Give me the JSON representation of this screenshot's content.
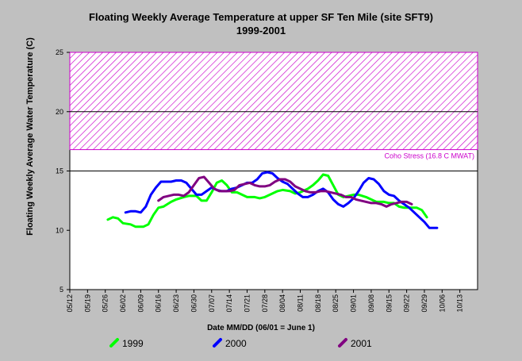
{
  "chart_data": {
    "type": "line",
    "title": "Floating Weekly Average Temperature at upper SF Ten Mile (site SFT9)",
    "subtitle": "1999-2001",
    "xlabel": "Date MM/DD (06/01 = June 1)",
    "ylabel": "Floating Weekly Average Water Temperature (C)",
    "ylim": [
      5,
      25
    ],
    "yticks": [
      "5",
      "10",
      "15",
      "20",
      "25"
    ],
    "grid": "horizontal at 15 and 20",
    "xticks": [
      "05/12",
      "05/19",
      "05/26",
      "06/02",
      "06/09",
      "06/16",
      "06/23",
      "06/30",
      "07/07",
      "07/14",
      "07/21",
      "07/28",
      "08/04",
      "08/11",
      "08/18",
      "08/25",
      "09/01",
      "09/08",
      "09/15",
      "09/22",
      "09/29",
      "10/06",
      "10/13"
    ],
    "band": {
      "from": 16.8,
      "to": 25,
      "label": "Coho Stress (16.8 C MWAT)",
      "color": "#cc00cc"
    },
    "legend_placement": "bottom",
    "series": [
      {
        "name": "1999",
        "color": "#00ff00",
        "points": [
          [
            15,
            10.9
          ],
          [
            17,
            11.1
          ],
          [
            19,
            11.0
          ],
          [
            21,
            10.6
          ],
          [
            24,
            10.5
          ],
          [
            26,
            10.3
          ],
          [
            29,
            10.3
          ],
          [
            31,
            10.5
          ],
          [
            33,
            11.3
          ],
          [
            35,
            11.9
          ],
          [
            37,
            12.0
          ],
          [
            40,
            12.4
          ],
          [
            42,
            12.6
          ],
          [
            45,
            12.8
          ],
          [
            47,
            12.9
          ],
          [
            50,
            12.9
          ],
          [
            52,
            12.5
          ],
          [
            54,
            12.5
          ],
          [
            56,
            13.2
          ],
          [
            58,
            14.0
          ],
          [
            60,
            14.2
          ],
          [
            62,
            13.8
          ],
          [
            64,
            13.2
          ],
          [
            66,
            13.2
          ],
          [
            68,
            13.0
          ],
          [
            70,
            12.8
          ],
          [
            73,
            12.8
          ],
          [
            75,
            12.7
          ],
          [
            77,
            12.8
          ],
          [
            80,
            13.1
          ],
          [
            82,
            13.3
          ],
          [
            84,
            13.4
          ],
          [
            87,
            13.3
          ],
          [
            89,
            13.1
          ],
          [
            91,
            13.2
          ],
          [
            94,
            13.5
          ],
          [
            96,
            13.8
          ],
          [
            98,
            14.2
          ],
          [
            100,
            14.7
          ],
          [
            102,
            14.6
          ],
          [
            104,
            13.8
          ],
          [
            106,
            13.0
          ],
          [
            108,
            12.8
          ],
          [
            110,
            12.9
          ],
          [
            112,
            13.0
          ],
          [
            114,
            13.0
          ],
          [
            117,
            12.8
          ],
          [
            119,
            12.6
          ],
          [
            121,
            12.4
          ],
          [
            124,
            12.4
          ],
          [
            126,
            12.3
          ],
          [
            128,
            12.3
          ],
          [
            130,
            12.0
          ],
          [
            132,
            11.9
          ],
          [
            135,
            11.9
          ],
          [
            137,
            11.9
          ],
          [
            139,
            11.7
          ],
          [
            141,
            11.1
          ]
        ]
      },
      {
        "name": "2000",
        "color": "#0000ff",
        "points": [
          [
            22,
            11.5
          ],
          [
            24,
            11.6
          ],
          [
            26,
            11.6
          ],
          [
            28,
            11.5
          ],
          [
            30,
            12.0
          ],
          [
            32,
            13.0
          ],
          [
            34,
            13.6
          ],
          [
            36,
            14.1
          ],
          [
            38,
            14.1
          ],
          [
            40,
            14.1
          ],
          [
            42,
            14.2
          ],
          [
            44,
            14.2
          ],
          [
            46,
            14.0
          ],
          [
            48,
            13.5
          ],
          [
            50,
            13.0
          ],
          [
            52,
            13.0
          ],
          [
            54,
            13.3
          ],
          [
            56,
            13.6
          ],
          [
            58,
            13.4
          ],
          [
            60,
            13.3
          ],
          [
            62,
            13.3
          ],
          [
            64,
            13.5
          ],
          [
            66,
            13.6
          ],
          [
            68,
            13.8
          ],
          [
            70,
            14.0
          ],
          [
            72,
            14.0
          ],
          [
            74,
            14.3
          ],
          [
            76,
            14.8
          ],
          [
            78,
            14.9
          ],
          [
            80,
            14.8
          ],
          [
            82,
            14.4
          ],
          [
            84,
            14.1
          ],
          [
            86,
            13.9
          ],
          [
            88,
            13.5
          ],
          [
            90,
            13.1
          ],
          [
            92,
            12.8
          ],
          [
            94,
            12.8
          ],
          [
            96,
            13.0
          ],
          [
            98,
            13.3
          ],
          [
            100,
            13.5
          ],
          [
            102,
            13.2
          ],
          [
            104,
            12.6
          ],
          [
            106,
            12.2
          ],
          [
            108,
            12.0
          ],
          [
            110,
            12.3
          ],
          [
            112,
            12.7
          ],
          [
            114,
            13.3
          ],
          [
            116,
            14.0
          ],
          [
            118,
            14.4
          ],
          [
            120,
            14.3
          ],
          [
            122,
            13.9
          ],
          [
            124,
            13.3
          ],
          [
            126,
            13.0
          ],
          [
            128,
            12.9
          ],
          [
            130,
            12.5
          ],
          [
            132,
            12.2
          ],
          [
            134,
            11.9
          ],
          [
            136,
            11.5
          ],
          [
            138,
            11.1
          ],
          [
            140,
            10.7
          ],
          [
            142,
            10.2
          ],
          [
            145,
            10.2
          ]
        ]
      },
      {
        "name": "2001",
        "color": "#800080",
        "points": [
          [
            35,
            12.5
          ],
          [
            37,
            12.8
          ],
          [
            39,
            12.9
          ],
          [
            41,
            13.0
          ],
          [
            43,
            13.0
          ],
          [
            45,
            12.9
          ],
          [
            47,
            13.2
          ],
          [
            49,
            13.8
          ],
          [
            51,
            14.4
          ],
          [
            53,
            14.5
          ],
          [
            55,
            14.0
          ],
          [
            57,
            13.5
          ],
          [
            59,
            13.3
          ],
          [
            61,
            13.3
          ],
          [
            63,
            13.3
          ],
          [
            65,
            13.4
          ],
          [
            67,
            13.8
          ],
          [
            69,
            13.9
          ],
          [
            71,
            14.0
          ],
          [
            73,
            13.8
          ],
          [
            75,
            13.7
          ],
          [
            77,
            13.7
          ],
          [
            79,
            13.8
          ],
          [
            81,
            14.1
          ],
          [
            83,
            14.3
          ],
          [
            85,
            14.3
          ],
          [
            87,
            14.1
          ],
          [
            89,
            13.7
          ],
          [
            91,
            13.5
          ],
          [
            93,
            13.3
          ],
          [
            95,
            13.2
          ],
          [
            97,
            13.2
          ],
          [
            99,
            13.3
          ],
          [
            101,
            13.3
          ],
          [
            103,
            13.2
          ],
          [
            105,
            13.1
          ],
          [
            107,
            13.0
          ],
          [
            109,
            12.8
          ],
          [
            111,
            12.8
          ],
          [
            113,
            12.6
          ],
          [
            115,
            12.5
          ],
          [
            117,
            12.4
          ],
          [
            119,
            12.3
          ],
          [
            121,
            12.3
          ],
          [
            123,
            12.2
          ],
          [
            125,
            12.0
          ],
          [
            127,
            12.2
          ],
          [
            129,
            12.3
          ],
          [
            131,
            12.4
          ],
          [
            133,
            12.4
          ],
          [
            135,
            12.2
          ]
        ]
      }
    ]
  }
}
